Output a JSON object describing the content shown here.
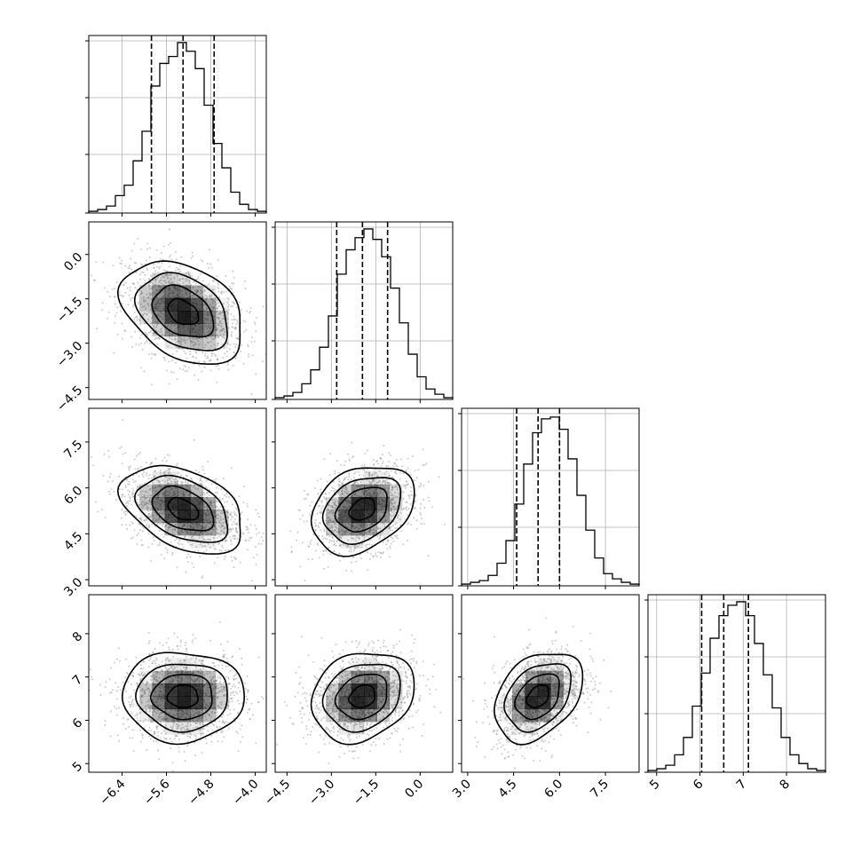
{
  "chart_data": {
    "type": "corner",
    "parameters": [
      {
        "ticks": [
          -6.4,
          -5.6,
          -4.8,
          -4.0
        ],
        "tick_labels": [
          "−6.4",
          "−5.6",
          "−4.8",
          "−4.0"
        ],
        "range": [
          -7.0,
          -3.8
        ],
        "mean": -5.3,
        "std": 0.55,
        "quantiles": [
          -5.87,
          -5.3,
          -4.74
        ]
      },
      {
        "ticks": [
          -4.5,
          -3.0,
          -1.5,
          0.0
        ],
        "tick_labels": [
          "−4.5",
          "−3.0",
          "−1.5",
          "0.0"
        ],
        "range": [
          -4.9,
          1.1
        ],
        "mean": -1.95,
        "std": 0.87,
        "quantiles": [
          -2.82,
          -1.95,
          -1.1
        ]
      },
      {
        "ticks": [
          3.0,
          4.5,
          6.0,
          7.5
        ],
        "tick_labels": [
          "3.0",
          "4.5",
          "6.0",
          "7.5"
        ],
        "range": [
          2.8,
          8.6
        ],
        "mean": 5.3,
        "std": 0.72,
        "quantiles": [
          4.6,
          5.3,
          6.0
        ]
      },
      {
        "ticks": [
          5,
          6,
          7,
          8
        ],
        "tick_labels": [
          "5",
          "6",
          "7",
          "8"
        ],
        "range": [
          4.8,
          8.9
        ],
        "mean": 6.55,
        "std": 0.52,
        "quantiles": [
          6.04,
          6.55,
          7.12
        ]
      }
    ],
    "correlations": {
      "1-0": -0.35,
      "2-0": -0.4,
      "2-1": 0.3,
      "3-0": 0.0,
      "3-1": 0.2,
      "3-2": 0.35
    },
    "histograms": [
      [
        0.01,
        0.02,
        0.04,
        0.1,
        0.16,
        0.3,
        0.47,
        0.73,
        0.86,
        0.9,
        0.98,
        0.93,
        0.83,
        0.62,
        0.4,
        0.26,
        0.12,
        0.05,
        0.02,
        0.01
      ],
      [
        0.01,
        0.02,
        0.04,
        0.09,
        0.17,
        0.3,
        0.48,
        0.72,
        0.86,
        0.93,
        0.98,
        0.92,
        0.82,
        0.64,
        0.44,
        0.26,
        0.13,
        0.06,
        0.03,
        0.01
      ],
      [
        0.01,
        0.02,
        0.03,
        0.06,
        0.13,
        0.26,
        0.47,
        0.7,
        0.88,
        0.96,
        0.97,
        0.9,
        0.73,
        0.52,
        0.32,
        0.16,
        0.07,
        0.04,
        0.02,
        0.01
      ],
      [
        0.01,
        0.02,
        0.04,
        0.1,
        0.2,
        0.38,
        0.57,
        0.77,
        0.9,
        0.96,
        0.98,
        0.9,
        0.74,
        0.56,
        0.37,
        0.2,
        0.1,
        0.05,
        0.02,
        0.01
      ]
    ],
    "contour_levels_sigma": [
      0.5,
      1.0,
      1.5,
      2.0
    ],
    "grid": true,
    "colors": {
      "points": "#8f8f8f",
      "density": "#000000",
      "lines": "#000000",
      "grid": "#b0b0b0"
    }
  }
}
